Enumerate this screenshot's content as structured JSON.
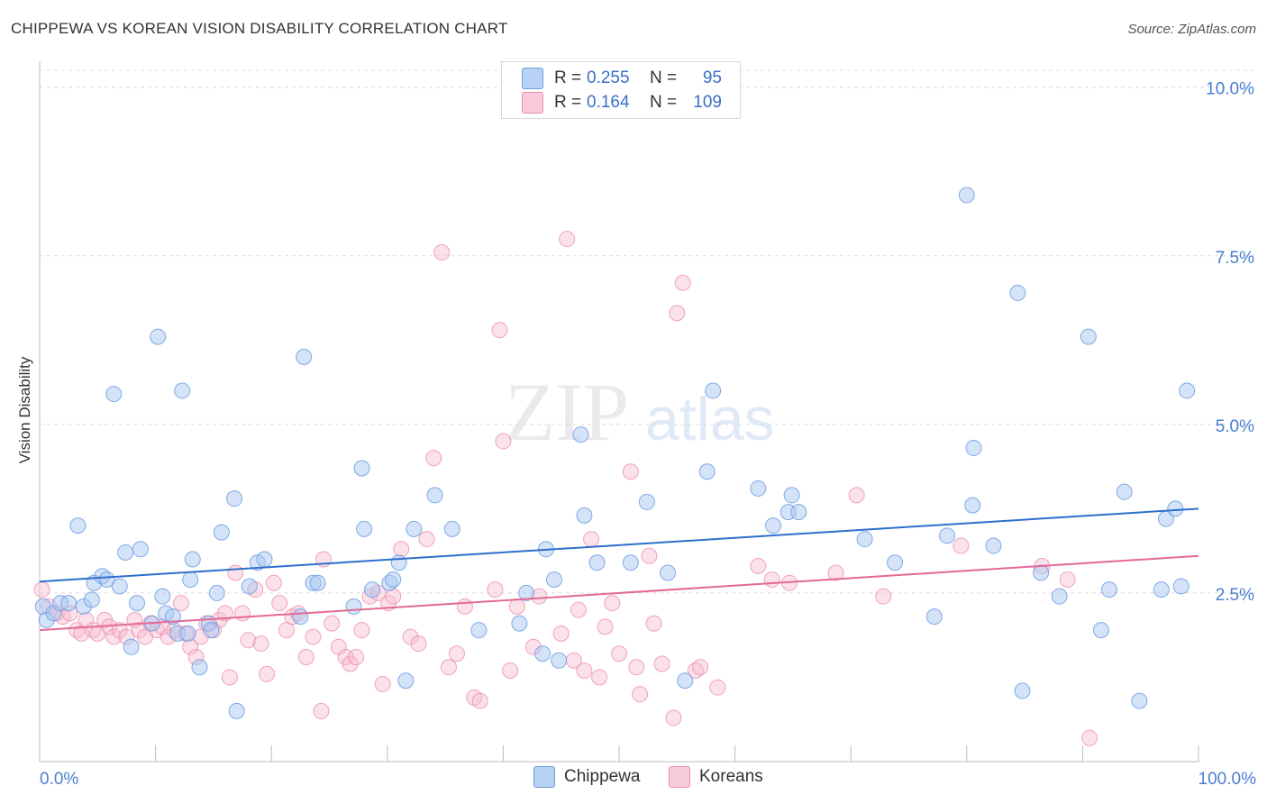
{
  "title": "CHIPPEWA VS KOREAN VISION DISABILITY CORRELATION CHART",
  "source": "Source: ZipAtlas.com",
  "watermark": {
    "zip": "ZIP",
    "atlas": "atlas"
  },
  "legend": {
    "rows": [
      {
        "r_label": "R =",
        "r_value": "0.255",
        "n_label": "N =",
        "n_value": "95"
      },
      {
        "r_label": "R =",
        "r_value": "0.164",
        "n_label": "N =",
        "n_value": "109"
      }
    ]
  },
  "colors": {
    "chippewa_fill": "#a9c8f2",
    "chippewa_stroke": "#6c9de0",
    "chippewa_line": "#2e6fcc",
    "koreans_fill": "#f6bdd0",
    "koreans_stroke": "#ec8fb0",
    "koreans_line": "#e26a96",
    "tick_label": "#4a7fd0"
  },
  "chart_data": {
    "type": "scatter",
    "title": "CHIPPEWA VS KOREAN VISION DISABILITY CORRELATION CHART",
    "xlabel": "",
    "ylabel": "Vision Disability",
    "xlim": [
      0,
      100
    ],
    "ylim": [
      0,
      10.25
    ],
    "x_tick_labels": [
      "0.0%",
      "100.0%"
    ],
    "y_ticks": [
      2.5,
      5.0,
      7.5,
      10.0
    ],
    "y_tick_labels": [
      "2.5%",
      "5.0%",
      "7.5%",
      "10.0%"
    ],
    "grid": true,
    "legend_position": "top-center",
    "series": [
      {
        "name": "Chippewa",
        "r": 0.255,
        "n": 95,
        "trend": {
          "x": [
            0,
            100
          ],
          "y": [
            2.67,
            3.75
          ]
        },
        "points": [
          [
            0.3,
            2.3
          ],
          [
            0.6,
            2.1
          ],
          [
            1.2,
            2.2
          ],
          [
            1.8,
            2.35
          ],
          [
            2.5,
            2.35
          ],
          [
            3.3,
            3.5
          ],
          [
            3.8,
            2.3
          ],
          [
            4.5,
            2.4
          ],
          [
            4.7,
            2.65
          ],
          [
            5.4,
            2.75
          ],
          [
            5.8,
            2.7
          ],
          [
            6.4,
            5.45
          ],
          [
            6.9,
            2.6
          ],
          [
            7.4,
            3.1
          ],
          [
            7.9,
            1.7
          ],
          [
            8.4,
            2.35
          ],
          [
            8.7,
            3.15
          ],
          [
            9.7,
            2.05
          ],
          [
            10.2,
            6.3
          ],
          [
            10.6,
            2.45
          ],
          [
            10.9,
            2.2
          ],
          [
            11.5,
            2.15
          ],
          [
            11.9,
            1.9
          ],
          [
            12.3,
            5.5
          ],
          [
            12.8,
            1.9
          ],
          [
            13.0,
            2.7
          ],
          [
            13.2,
            3.0
          ],
          [
            13.8,
            1.4
          ],
          [
            14.6,
            2.05
          ],
          [
            14.8,
            1.95
          ],
          [
            15.3,
            2.5
          ],
          [
            15.7,
            3.4
          ],
          [
            16.8,
            3.9
          ],
          [
            17.0,
            0.75
          ],
          [
            18.1,
            2.6
          ],
          [
            18.8,
            2.95
          ],
          [
            19.4,
            3.0
          ],
          [
            22.5,
            2.15
          ],
          [
            22.8,
            6.0
          ],
          [
            23.6,
            2.65
          ],
          [
            24.0,
            2.65
          ],
          [
            27.1,
            2.3
          ],
          [
            27.8,
            4.35
          ],
          [
            28.0,
            3.45
          ],
          [
            28.7,
            2.55
          ],
          [
            30.2,
            2.65
          ],
          [
            30.5,
            2.7
          ],
          [
            31.0,
            2.95
          ],
          [
            31.6,
            1.2
          ],
          [
            32.3,
            3.45
          ],
          [
            34.1,
            3.95
          ],
          [
            35.6,
            3.45
          ],
          [
            37.9,
            1.95
          ],
          [
            41.4,
            2.05
          ],
          [
            42.0,
            2.5
          ],
          [
            43.4,
            1.6
          ],
          [
            43.7,
            3.15
          ],
          [
            44.4,
            2.7
          ],
          [
            44.8,
            1.5
          ],
          [
            46.7,
            4.85
          ],
          [
            47.0,
            3.65
          ],
          [
            48.1,
            2.95
          ],
          [
            51.0,
            2.95
          ],
          [
            52.4,
            3.85
          ],
          [
            54.2,
            2.8
          ],
          [
            55.7,
            1.2
          ],
          [
            57.6,
            4.3
          ],
          [
            58.1,
            5.5
          ],
          [
            62.0,
            4.05
          ],
          [
            63.3,
            3.5
          ],
          [
            64.6,
            3.7
          ],
          [
            64.9,
            3.95
          ],
          [
            65.5,
            3.7
          ],
          [
            71.2,
            3.3
          ],
          [
            73.8,
            2.95
          ],
          [
            77.2,
            2.15
          ],
          [
            78.3,
            3.35
          ],
          [
            80.0,
            8.4
          ],
          [
            80.5,
            3.8
          ],
          [
            80.6,
            4.65
          ],
          [
            82.3,
            3.2
          ],
          [
            84.4,
            6.95
          ],
          [
            84.8,
            1.05
          ],
          [
            86.4,
            2.8
          ],
          [
            88.0,
            2.45
          ],
          [
            90.5,
            6.3
          ],
          [
            91.6,
            1.95
          ],
          [
            92.3,
            2.55
          ],
          [
            93.6,
            4.0
          ],
          [
            94.9,
            0.9
          ],
          [
            96.8,
            2.55
          ],
          [
            97.2,
            3.6
          ],
          [
            98.0,
            3.75
          ],
          [
            98.5,
            2.6
          ],
          [
            99.0,
            5.5
          ]
        ]
      },
      {
        "name": "Koreans",
        "r": 0.164,
        "n": 109,
        "trend": {
          "x": [
            0,
            100
          ],
          "y": [
            1.95,
            3.05
          ]
        },
        "points": [
          [
            0.2,
            2.55
          ],
          [
            0.8,
            2.3
          ],
          [
            1.5,
            2.2
          ],
          [
            2.0,
            2.15
          ],
          [
            2.6,
            2.2
          ],
          [
            3.2,
            1.95
          ],
          [
            3.6,
            1.9
          ],
          [
            4.0,
            2.1
          ],
          [
            4.6,
            1.95
          ],
          [
            5.0,
            1.9
          ],
          [
            5.6,
            2.1
          ],
          [
            6.0,
            2.0
          ],
          [
            6.4,
            1.85
          ],
          [
            6.9,
            1.95
          ],
          [
            7.5,
            1.85
          ],
          [
            8.2,
            2.1
          ],
          [
            8.6,
            1.95
          ],
          [
            9.1,
            1.85
          ],
          [
            9.6,
            2.05
          ],
          [
            10.1,
            1.95
          ],
          [
            10.6,
            2.0
          ],
          [
            11.1,
            1.85
          ],
          [
            11.6,
            1.95
          ],
          [
            12.2,
            2.35
          ],
          [
            12.6,
            1.9
          ],
          [
            13.0,
            1.7
          ],
          [
            13.5,
            1.55
          ],
          [
            13.9,
            1.85
          ],
          [
            14.4,
            2.05
          ],
          [
            15.0,
            1.95
          ],
          [
            15.5,
            2.1
          ],
          [
            16.0,
            2.2
          ],
          [
            16.4,
            1.25
          ],
          [
            16.9,
            2.8
          ],
          [
            17.5,
            2.2
          ],
          [
            18.0,
            1.8
          ],
          [
            18.6,
            2.55
          ],
          [
            19.1,
            1.75
          ],
          [
            19.6,
            1.3
          ],
          [
            20.2,
            2.65
          ],
          [
            20.7,
            2.35
          ],
          [
            21.3,
            1.95
          ],
          [
            21.8,
            2.15
          ],
          [
            22.3,
            2.2
          ],
          [
            23.0,
            1.55
          ],
          [
            23.6,
            1.85
          ],
          [
            24.3,
            0.75
          ],
          [
            24.5,
            3.0
          ],
          [
            25.2,
            2.05
          ],
          [
            25.8,
            1.7
          ],
          [
            26.4,
            1.55
          ],
          [
            26.8,
            1.45
          ],
          [
            27.3,
            1.55
          ],
          [
            27.8,
            1.95
          ],
          [
            28.5,
            2.45
          ],
          [
            29.2,
            2.5
          ],
          [
            29.6,
            1.15
          ],
          [
            30.1,
            2.35
          ],
          [
            30.5,
            2.45
          ],
          [
            31.2,
            3.15
          ],
          [
            32.0,
            1.85
          ],
          [
            32.7,
            1.75
          ],
          [
            33.4,
            3.3
          ],
          [
            34.0,
            4.5
          ],
          [
            34.7,
            7.55
          ],
          [
            35.3,
            1.4
          ],
          [
            36.0,
            1.6
          ],
          [
            36.7,
            2.3
          ],
          [
            37.5,
            0.95
          ],
          [
            38.0,
            0.9
          ],
          [
            39.3,
            2.55
          ],
          [
            39.7,
            6.4
          ],
          [
            40.0,
            4.75
          ],
          [
            40.6,
            1.35
          ],
          [
            41.2,
            2.3
          ],
          [
            42.6,
            1.7
          ],
          [
            43.1,
            2.45
          ],
          [
            45.0,
            1.9
          ],
          [
            45.5,
            7.75
          ],
          [
            46.1,
            1.5
          ],
          [
            46.5,
            2.25
          ],
          [
            47.0,
            1.35
          ],
          [
            47.6,
            3.3
          ],
          [
            48.3,
            1.25
          ],
          [
            48.8,
            2.0
          ],
          [
            49.4,
            2.35
          ],
          [
            50.0,
            1.6
          ],
          [
            51.0,
            4.3
          ],
          [
            51.5,
            1.4
          ],
          [
            51.8,
            1.0
          ],
          [
            52.6,
            3.05
          ],
          [
            53.0,
            2.05
          ],
          [
            53.7,
            1.45
          ],
          [
            54.7,
            0.65
          ],
          [
            55.0,
            6.65
          ],
          [
            55.5,
            7.1
          ],
          [
            56.6,
            1.35
          ],
          [
            57.0,
            1.4
          ],
          [
            58.5,
            1.1
          ],
          [
            62.0,
            2.9
          ],
          [
            63.2,
            2.7
          ],
          [
            64.7,
            2.65
          ],
          [
            68.7,
            2.8
          ],
          [
            70.5,
            3.95
          ],
          [
            72.8,
            2.45
          ],
          [
            79.5,
            3.2
          ],
          [
            86.5,
            2.9
          ],
          [
            88.7,
            2.7
          ],
          [
            90.6,
            0.35
          ]
        ]
      }
    ]
  }
}
